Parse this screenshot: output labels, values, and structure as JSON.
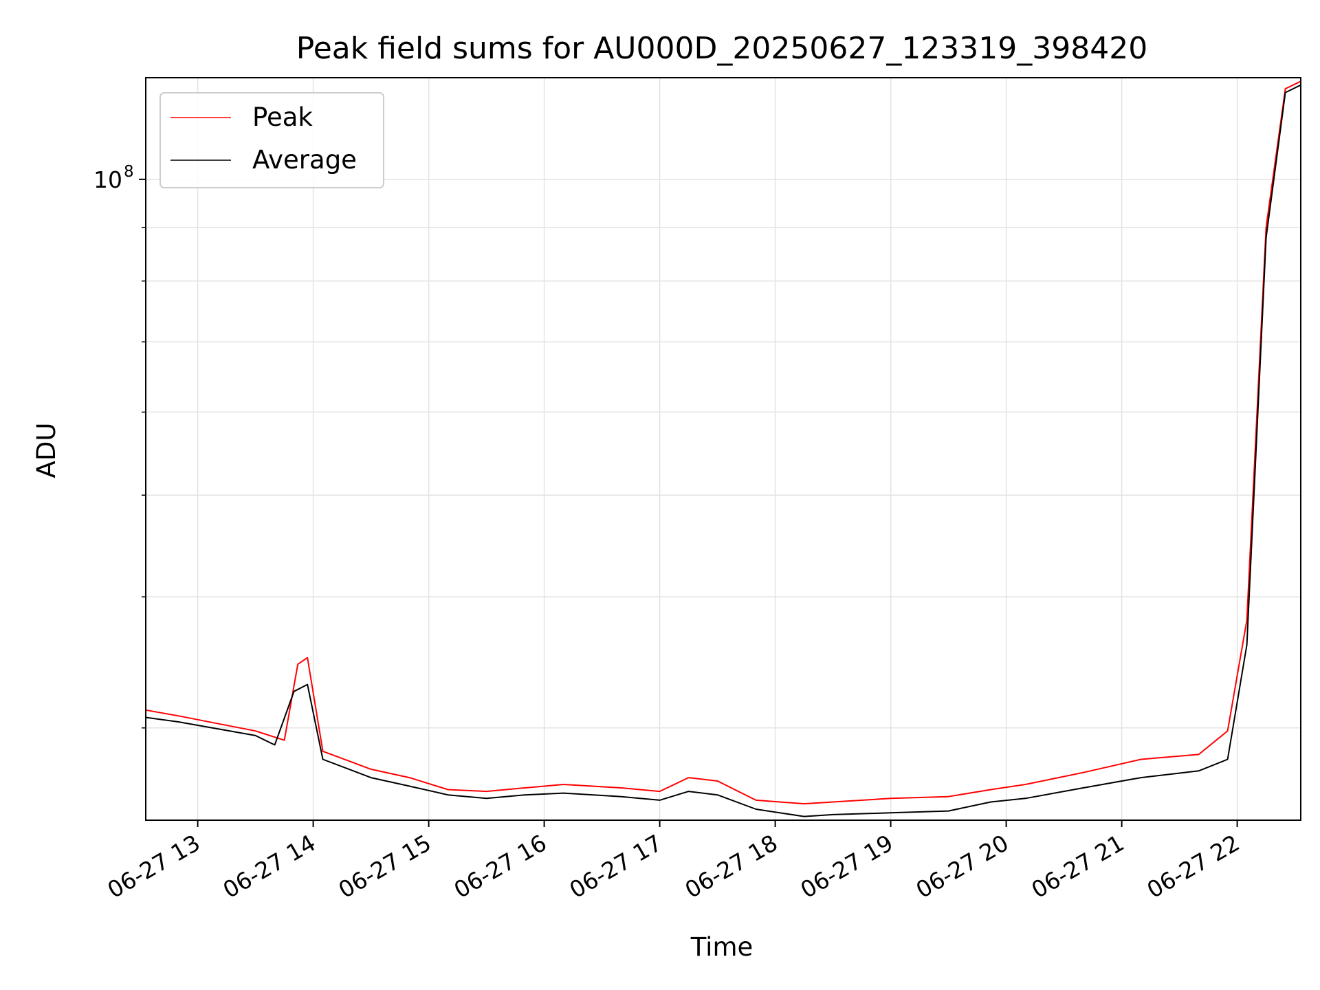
{
  "chart_data": {
    "type": "line",
    "title": "Peak field sums for AU000D_20250627_123319_398420",
    "xlabel": "Time",
    "ylabel": "ADU",
    "yscale": "log",
    "grid": true,
    "legend_position": "top-left",
    "xlim": [
      "2025-06-27 12:33",
      "2025-06-27 22:33"
    ],
    "ylim": [
      24500000,
      125000000
    ],
    "x_tick_labels": [
      "06-27 13",
      "06-27 14",
      "06-27 15",
      "06-27 16",
      "06-27 17",
      "06-27 18",
      "06-27 19",
      "06-27 20",
      "06-27 21",
      "06-27 22"
    ],
    "x_ticks": [
      "2025-06-27 13:00",
      "2025-06-27 14:00",
      "2025-06-27 15:00",
      "2025-06-27 16:00",
      "2025-06-27 17:00",
      "2025-06-27 18:00",
      "2025-06-27 19:00",
      "2025-06-27 20:00",
      "2025-06-27 21:00",
      "2025-06-27 22:00"
    ],
    "y_major_ticks": [
      {
        "value": 100000000,
        "base": "10",
        "exp": "8"
      }
    ],
    "y_minor_ticks": [
      30000000,
      40000000,
      50000000,
      60000000,
      70000000,
      80000000,
      90000000
    ],
    "series": [
      {
        "name": "Peak",
        "color": "#ff0000",
        "x": [
          "2025-06-27 12:33",
          "2025-06-27 12:50",
          "2025-06-27 13:30",
          "2025-06-27 13:45",
          "2025-06-27 13:52",
          "2025-06-27 13:57",
          "2025-06-27 14:05",
          "2025-06-27 14:30",
          "2025-06-27 14:50",
          "2025-06-27 15:10",
          "2025-06-27 15:30",
          "2025-06-27 15:50",
          "2025-06-27 16:10",
          "2025-06-27 16:40",
          "2025-06-27 17:00",
          "2025-06-27 17:15",
          "2025-06-27 17:30",
          "2025-06-27 17:50",
          "2025-06-27 18:15",
          "2025-06-27 18:30",
          "2025-06-27 19:00",
          "2025-06-27 19:30",
          "2025-06-27 19:52",
          "2025-06-27 20:10",
          "2025-06-27 20:40",
          "2025-06-27 21:10",
          "2025-06-27 21:40",
          "2025-06-27 21:55",
          "2025-06-27 22:05",
          "2025-06-27 22:15",
          "2025-06-27 22:25",
          "2025-06-27 22:33"
        ],
        "y": [
          31200000,
          30800000,
          29800000,
          29200000,
          34500000,
          35000000,
          28500000,
          27400000,
          26900000,
          26200000,
          26100000,
          26300000,
          26500000,
          26300000,
          26100000,
          26900000,
          26700000,
          25600000,
          25400000,
          25500000,
          25700000,
          25800000,
          26200000,
          26500000,
          27200000,
          28000000,
          28300000,
          29800000,
          38000000,
          90000000,
          122000000,
          124000000
        ]
      },
      {
        "name": "Average",
        "color": "#000000",
        "x": [
          "2025-06-27 12:33",
          "2025-06-27 12:50",
          "2025-06-27 13:30",
          "2025-06-27 13:40",
          "2025-06-27 13:50",
          "2025-06-27 13:57",
          "2025-06-27 14:05",
          "2025-06-27 14:30",
          "2025-06-27 14:50",
          "2025-06-27 15:10",
          "2025-06-27 15:30",
          "2025-06-27 15:50",
          "2025-06-27 16:10",
          "2025-06-27 16:40",
          "2025-06-27 17:00",
          "2025-06-27 17:15",
          "2025-06-27 17:30",
          "2025-06-27 17:50",
          "2025-06-27 18:15",
          "2025-06-27 18:30",
          "2025-06-27 19:00",
          "2025-06-27 19:30",
          "2025-06-27 19:52",
          "2025-06-27 20:10",
          "2025-06-27 20:40",
          "2025-06-27 21:10",
          "2025-06-27 21:40",
          "2025-06-27 21:55",
          "2025-06-27 22:05",
          "2025-06-27 22:15",
          "2025-06-27 22:25",
          "2025-06-27 22:33"
        ],
        "y": [
          30700000,
          30400000,
          29500000,
          28900000,
          32500000,
          33000000,
          28000000,
          26900000,
          26400000,
          25900000,
          25700000,
          25900000,
          26000000,
          25800000,
          25600000,
          26100000,
          25900000,
          25100000,
          24700000,
          24800000,
          24900000,
          25000000,
          25500000,
          25700000,
          26300000,
          26900000,
          27300000,
          28000000,
          36000000,
          88000000,
          121000000,
          123000000
        ]
      }
    ]
  }
}
